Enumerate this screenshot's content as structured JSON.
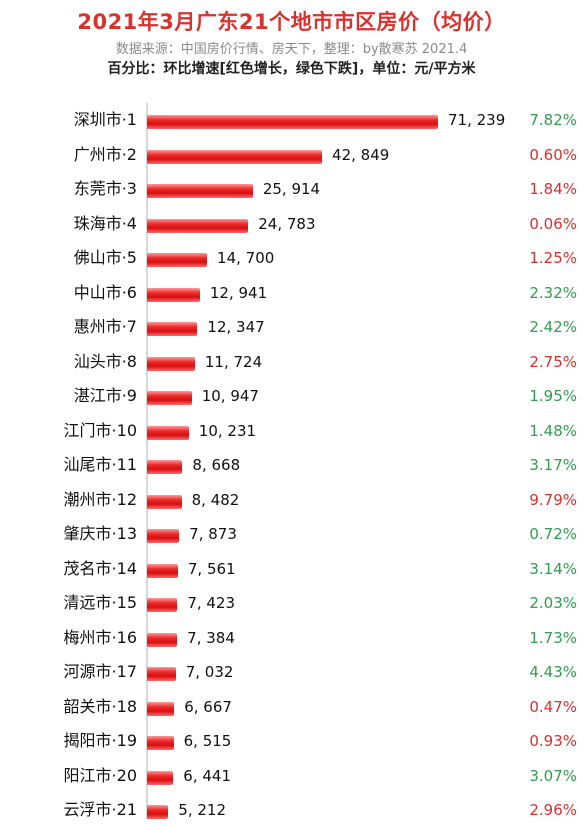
{
  "header": {
    "title": "2021年3月广东21个地市市区房价（均价）",
    "source": "数据来源：中国房价行情、房天下，整理：by散寒苏 2021.4",
    "note": "百分比：环比增速[红色增长，绿色下跌]，单位：元/平方米"
  },
  "colors": {
    "bar": "#e01515",
    "increase": "#d9312c",
    "decrease": "#2e9e4f",
    "title": "#d9312c"
  },
  "chart_data": {
    "type": "bar",
    "orientation": "horizontal",
    "title": "2021年3月广东21个地市市区房价（均价）",
    "unit": "元/平方米",
    "categories": [
      "深圳市·1",
      "广州市·2",
      "东莞市·3",
      "珠海市·4",
      "佛山市·5",
      "中山市·6",
      "惠州市·7",
      "汕头市·8",
      "湛江市·9",
      "江门市·10",
      "汕尾市·11",
      "潮州市·12",
      "肇庆市·13",
      "茂名市·14",
      "清远市·15",
      "梅州市·16",
      "河源市·17",
      "韶关市·18",
      "揭阳市·19",
      "阳江市·20",
      "云浮市·21"
    ],
    "values": [
      71239,
      42849,
      25914,
      24783,
      14700,
      12941,
      12347,
      11724,
      10947,
      10231,
      8668,
      8482,
      7873,
      7561,
      7423,
      7384,
      7032,
      6667,
      6515,
      6441,
      5212
    ],
    "value_labels": [
      "71, 239",
      "42, 849",
      "25, 914",
      "24, 783",
      "14, 700",
      "12, 941",
      "12, 347",
      "11, 724",
      "10, 947",
      "10, 231",
      "8, 668",
      "8, 482",
      "7, 873",
      "7, 561",
      "7, 423",
      "7, 384",
      "7, 032",
      "6, 667",
      "6, 515",
      "6, 441",
      "5, 212"
    ],
    "change_labels": [
      "7.82%",
      "0.60%",
      "1.84%",
      "0.06%",
      "1.25%",
      "2.32%",
      "2.42%",
      "2.75%",
      "1.95%",
      "1.48%",
      "3.17%",
      "9.79%",
      "0.72%",
      "3.14%",
      "2.03%",
      "1.73%",
      "4.43%",
      "0.47%",
      "0.93%",
      "3.07%",
      "2.96%"
    ],
    "change_direction": [
      "down",
      "up",
      "up",
      "up",
      "up",
      "down",
      "down",
      "up",
      "down",
      "down",
      "down",
      "up",
      "down",
      "down",
      "down",
      "down",
      "down",
      "up",
      "up",
      "down",
      "up"
    ],
    "xlim": [
      0,
      71239
    ],
    "grid": false,
    "legend": "none"
  }
}
